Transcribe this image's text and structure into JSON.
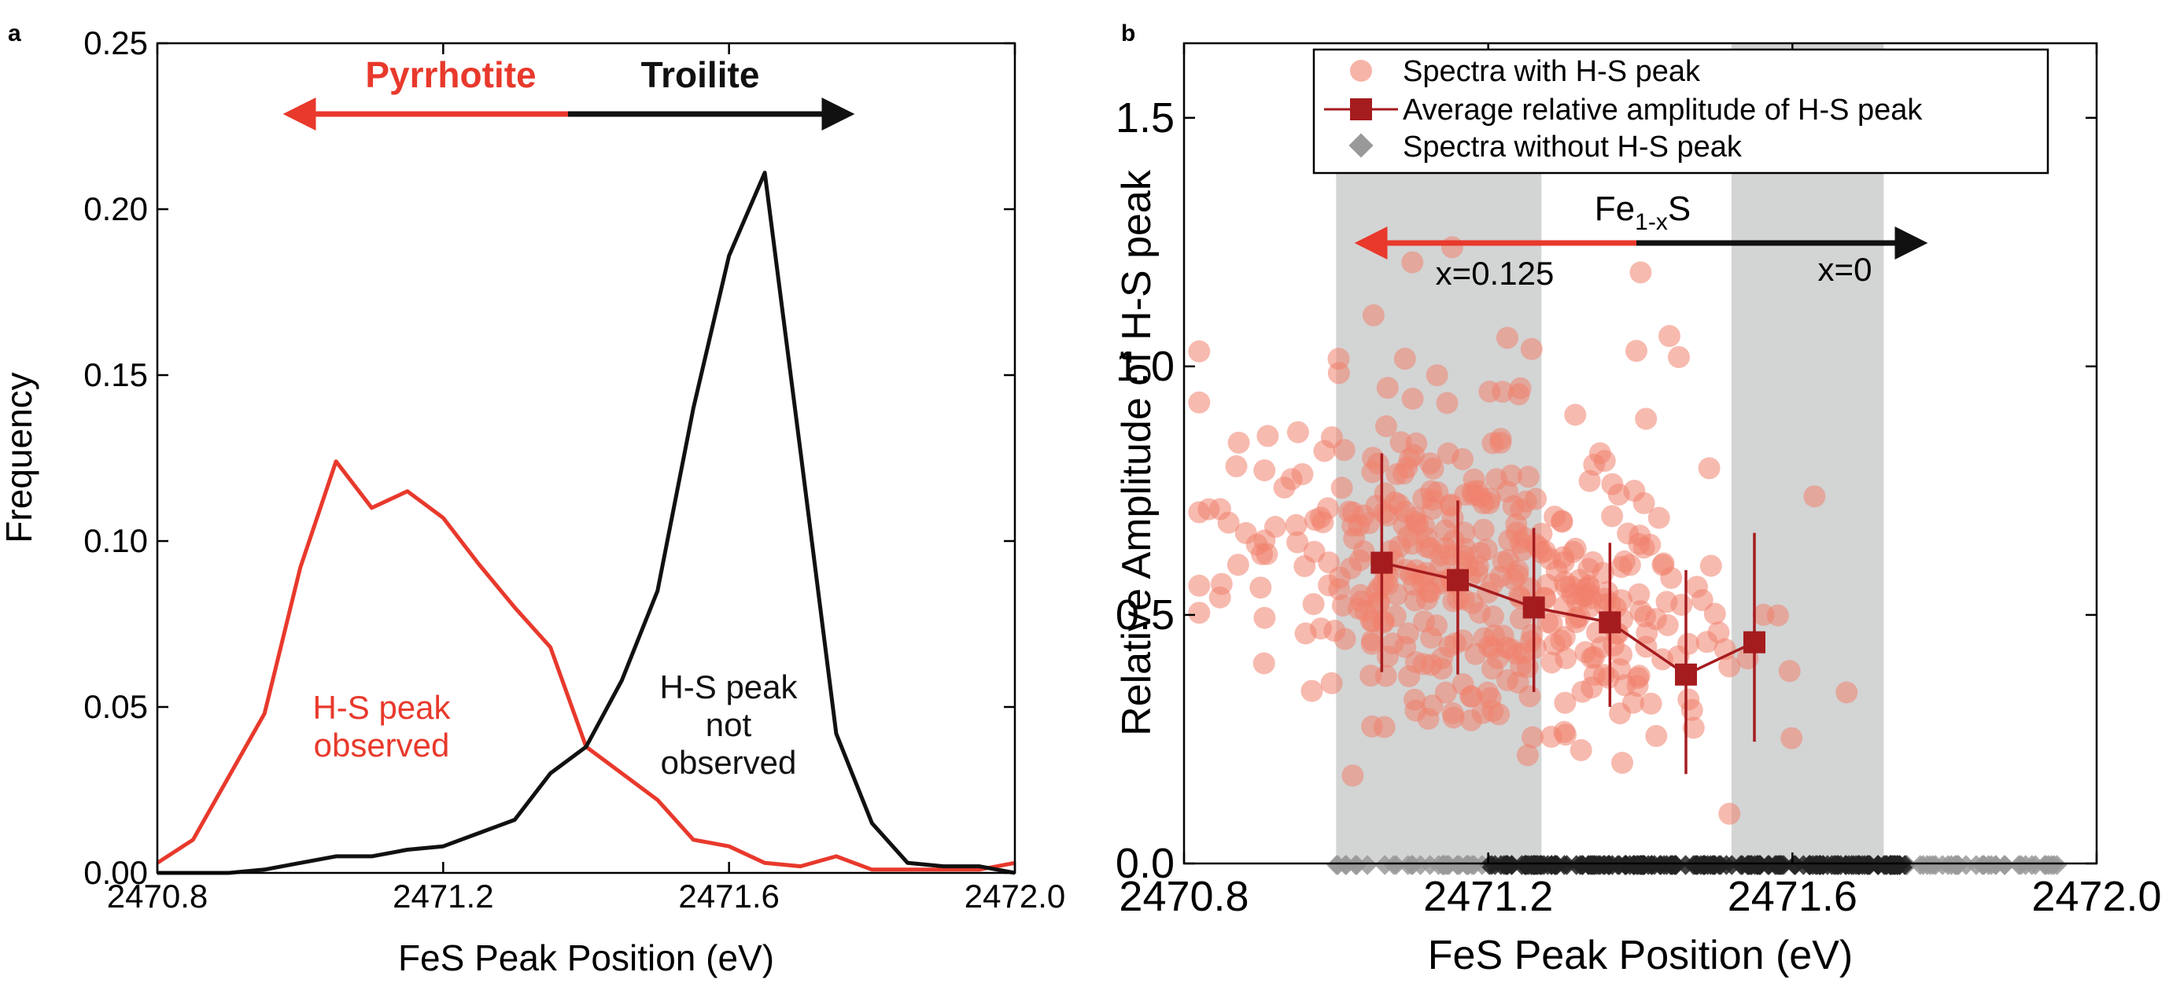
{
  "chart_data": [
    {
      "panel_label": "a",
      "type": "line",
      "xlabel": "FeS Peak Position (eV)",
      "ylabel": "Frequency",
      "xlim": [
        2470.8,
        2472.0
      ],
      "ylim": [
        0,
        0.25
      ],
      "xticks": [
        "2470.8",
        "2471.2",
        "2471.6",
        "2472.0"
      ],
      "yticks": [
        "0.00",
        "0.05",
        "0.10",
        "0.15",
        "0.20",
        "0.25"
      ],
      "grid": false,
      "series": [
        {
          "color": "#e8392c",
          "x": [
            2470.8,
            2470.85,
            2470.9,
            2470.95,
            2471.0,
            2471.05,
            2471.1,
            2471.15,
            2471.2,
            2471.25,
            2471.3,
            2471.35,
            2471.4,
            2471.45,
            2471.5,
            2471.55,
            2471.6,
            2471.65,
            2471.7,
            2471.75,
            2471.8,
            2471.85,
            2471.9,
            2471.95,
            2472.0
          ],
          "y": [
            0.003,
            0.01,
            0.029,
            0.048,
            0.092,
            0.124,
            0.11,
            0.115,
            0.107,
            0.093,
            0.08,
            0.068,
            0.038,
            0.03,
            0.022,
            0.01,
            0.008,
            0.003,
            0.002,
            0.005,
            0.001,
            0.001,
            0.001,
            0.001,
            0.003
          ]
        },
        {
          "color": "#111111",
          "x": [
            2470.8,
            2470.85,
            2470.9,
            2470.95,
            2471.0,
            2471.05,
            2471.1,
            2471.15,
            2471.2,
            2471.25,
            2471.3,
            2471.35,
            2471.4,
            2471.45,
            2471.5,
            2471.55,
            2471.6,
            2471.65,
            2471.7,
            2471.75,
            2471.8,
            2471.85,
            2471.9,
            2471.95,
            2472.0
          ],
          "y": [
            0.0,
            0.0,
            0.0,
            0.001,
            0.003,
            0.005,
            0.005,
            0.007,
            0.008,
            0.012,
            0.016,
            0.03,
            0.038,
            0.058,
            0.085,
            0.14,
            0.186,
            0.211,
            0.127,
            0.042,
            0.015,
            0.003,
            0.002,
            0.002,
            0.0
          ]
        }
      ],
      "annotations": {
        "pyrrhotite": "Pyrrhotite",
        "troilite": "Troilite",
        "observed_line1": "H-S peak",
        "observed_line2": "observed",
        "not_observed_line1": "H-S peak",
        "not_observed_line2": "not",
        "not_observed_line3": "observed"
      },
      "colors": {
        "red": "#e8392c",
        "black": "#111111"
      }
    },
    {
      "panel_label": "b",
      "type": "scatter",
      "xlabel": "FeS Peak Position (eV)",
      "ylabel": "Relative Amplitude of H-S peak",
      "xlim": [
        2470.8,
        2472.0
      ],
      "ylim": [
        0,
        1.65
      ],
      "xticks": [
        "2470.8",
        "2471.2",
        "2471.6",
        "2472.0"
      ],
      "yticks": [
        "0.0",
        "0.5",
        "1.0",
        "1.5"
      ],
      "grid": false,
      "shaded_regions": [
        [
          2471.0,
          2471.27
        ],
        [
          2471.52,
          2471.72
        ]
      ],
      "legend": {
        "position": "top",
        "entries": [
          "Spectra with H-S peak",
          "Average relative amplitude of H-S peak",
          "Spectra without H-S peak"
        ]
      },
      "average_series": {
        "color": "#a51c1f",
        "x": [
          2471.06,
          2471.16,
          2471.26,
          2471.36,
          2471.46,
          2471.55
        ],
        "y": [
          0.605,
          0.57,
          0.515,
          0.485,
          0.38,
          0.445
        ],
        "yerr_low": [
          0.22,
          0.19,
          0.17,
          0.17,
          0.2,
          0.2
        ],
        "yerr_high": [
          0.22,
          0.16,
          0.16,
          0.16,
          0.21,
          0.22
        ]
      },
      "scatter_points_count": 420,
      "scatter_color": "#f0826e",
      "without_peak_color": "#999999",
      "annotations": {
        "composition_main": "Fe",
        "composition_sub": "1-x",
        "composition_end": "S",
        "x_left": "x=0.125",
        "x_right": "x=0"
      }
    }
  ]
}
